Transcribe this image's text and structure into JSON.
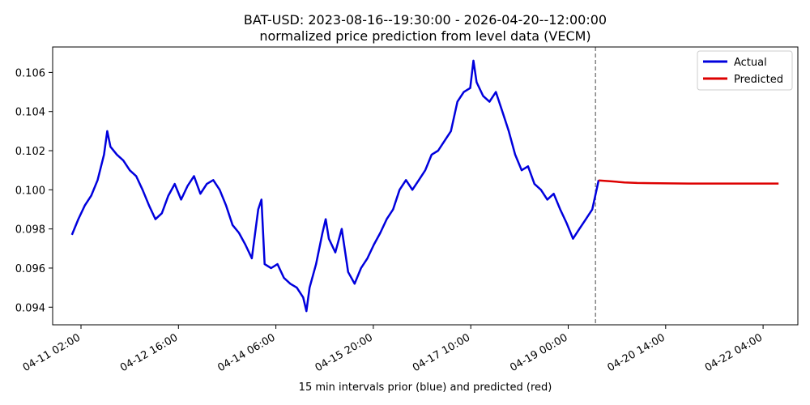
{
  "chart_data": {
    "type": "line",
    "title": "BAT-USD: 2023-08-16--19:30:00 - 2026-04-20--12:00:00",
    "subtitle": "normalized price prediction from level data (VECM)",
    "xlabel": "15 min intervals prior (blue) and predicted (red)",
    "ylabel": "",
    "x_tick_labels": [
      "04-11 02:00",
      "04-12 16:00",
      "04-14 06:00",
      "04-15 20:00",
      "04-17 10:00",
      "04-19 00:00",
      "04-20 14:00",
      "04-22 04:00"
    ],
    "y_tick_labels": [
      "0.094",
      "0.096",
      "0.098",
      "0.100",
      "0.102",
      "0.104",
      "0.106"
    ],
    "y_ticks": [
      0.094,
      0.096,
      0.098,
      0.1,
      0.102,
      0.104,
      0.106
    ],
    "ylim": [
      0.0931,
      0.1073
    ],
    "grid": false,
    "legend_position": "top-right",
    "series": [
      {
        "name": "Actual",
        "color": "#0000dd",
        "points": [
          [
            0,
            0.0977
          ],
          [
            1,
            0.0985
          ],
          [
            2,
            0.0992
          ],
          [
            3,
            0.0997
          ],
          [
            4,
            0.1005
          ],
          [
            5,
            0.1018
          ],
          [
            5.5,
            0.103
          ],
          [
            6,
            0.1022
          ],
          [
            7,
            0.1018
          ],
          [
            8,
            0.1015
          ],
          [
            9,
            0.101
          ],
          [
            10,
            0.1007
          ],
          [
            11,
            0.1
          ],
          [
            12,
            0.0992
          ],
          [
            13,
            0.0985
          ],
          [
            14,
            0.0988
          ],
          [
            15,
            0.0997
          ],
          [
            16,
            0.1003
          ],
          [
            17,
            0.0995
          ],
          [
            18,
            0.1002
          ],
          [
            19,
            0.1007
          ],
          [
            20,
            0.0998
          ],
          [
            21,
            0.1003
          ],
          [
            22,
            0.1005
          ],
          [
            23,
            0.1
          ],
          [
            24,
            0.0992
          ],
          [
            25,
            0.0982
          ],
          [
            26,
            0.0978
          ],
          [
            27,
            0.0972
          ],
          [
            28,
            0.0965
          ],
          [
            29,
            0.099
          ],
          [
            29.5,
            0.0995
          ],
          [
            30,
            0.0962
          ],
          [
            31,
            0.096
          ],
          [
            32,
            0.0962
          ],
          [
            33,
            0.0955
          ],
          [
            34,
            0.0952
          ],
          [
            35,
            0.095
          ],
          [
            36,
            0.0945
          ],
          [
            36.5,
            0.0938
          ],
          [
            37,
            0.095
          ],
          [
            38,
            0.0962
          ],
          [
            39,
            0.0978
          ],
          [
            39.5,
            0.0985
          ],
          [
            40,
            0.0975
          ],
          [
            41,
            0.0968
          ],
          [
            42,
            0.098
          ],
          [
            43,
            0.0958
          ],
          [
            44,
            0.0952
          ],
          [
            45,
            0.096
          ],
          [
            46,
            0.0965
          ],
          [
            47,
            0.0972
          ],
          [
            48,
            0.0978
          ],
          [
            49,
            0.0985
          ],
          [
            50,
            0.099
          ],
          [
            51,
            0.1
          ],
          [
            52,
            0.1005
          ],
          [
            53,
            0.1
          ],
          [
            54,
            0.1005
          ],
          [
            55,
            0.101
          ],
          [
            56,
            0.1018
          ],
          [
            57,
            0.102
          ],
          [
            58,
            0.1025
          ],
          [
            59,
            0.103
          ],
          [
            60,
            0.1045
          ],
          [
            61,
            0.105
          ],
          [
            62,
            0.1052
          ],
          [
            62.5,
            0.1066
          ],
          [
            63,
            0.1055
          ],
          [
            64,
            0.1048
          ],
          [
            65,
            0.1045
          ],
          [
            66,
            0.105
          ],
          [
            67,
            0.104
          ],
          [
            68,
            0.103
          ],
          [
            69,
            0.1018
          ],
          [
            70,
            0.101
          ],
          [
            71,
            0.1012
          ],
          [
            72,
            0.1003
          ],
          [
            73,
            0.1
          ],
          [
            74,
            0.0995
          ],
          [
            75,
            0.0998
          ],
          [
            76,
            0.099
          ],
          [
            77,
            0.0983
          ],
          [
            78,
            0.0975
          ],
          [
            79,
            0.098
          ],
          [
            80,
            0.0985
          ],
          [
            81,
            0.099
          ],
          [
            82,
            0.1005
          ]
        ]
      },
      {
        "name": "Predicted",
        "color": "#dd0000",
        "points": [
          [
            82,
            0.10048
          ],
          [
            84,
            0.10043
          ],
          [
            86,
            0.10038
          ],
          [
            88,
            0.10035
          ],
          [
            90,
            0.10034
          ],
          [
            93,
            0.10033
          ],
          [
            96,
            0.10032
          ],
          [
            100,
            0.10032
          ],
          [
            104,
            0.10032
          ],
          [
            110,
            0.10032
          ]
        ]
      }
    ],
    "vertical_marker": {
      "x": 81.5,
      "style": "dashed",
      "color": "#666666"
    }
  }
}
